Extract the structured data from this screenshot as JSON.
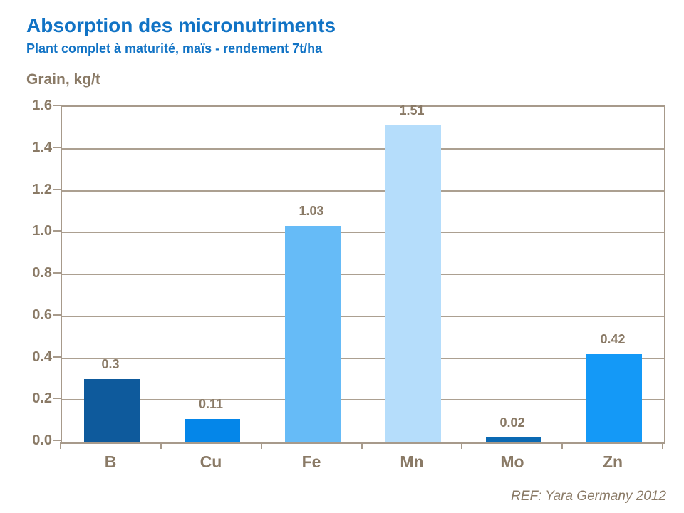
{
  "header": {
    "title": "Absorption des micronutriments",
    "subtitle": "Plant complet à maturité, maïs - rendement 7t/ha"
  },
  "chart_data": {
    "type": "bar",
    "title": "Absorption des micronutriments",
    "subtitle": "Plant complet à maturité, maïs - rendement 7t/ha",
    "ylabel": "Grain, kg/t",
    "xlabel": "",
    "categories": [
      "B",
      "Cu",
      "Fe",
      "Mn",
      "Mo",
      "Zn"
    ],
    "values": [
      0.3,
      0.11,
      1.03,
      1.51,
      0.02,
      0.42
    ],
    "value_labels": [
      "0.3",
      "0.11",
      "1.03",
      "1.51",
      "0.02",
      "0.42"
    ],
    "bar_colors": [
      "#0E5A9C",
      "#0486E9",
      "#66BBF7",
      "#B5DDFB",
      "#0B69B3",
      "#1499F7"
    ],
    "ylim": [
      0,
      1.6
    ],
    "ytick_step": 0.2,
    "ytick_labels": [
      "0.0",
      "0.2",
      "0.4",
      "0.6",
      "0.8",
      "1.0",
      "1.2",
      "1.4",
      "1.6"
    ],
    "grid": true,
    "legend_position": "none"
  },
  "footer": {
    "ref": "REF: Yara Germany 2012"
  },
  "colors": {
    "title_blue": "#1173C5",
    "text_brown": "#8A7A66",
    "axis": "#A79A8B",
    "gridline": "#ACA091",
    "background": "#FFFFFF"
  }
}
